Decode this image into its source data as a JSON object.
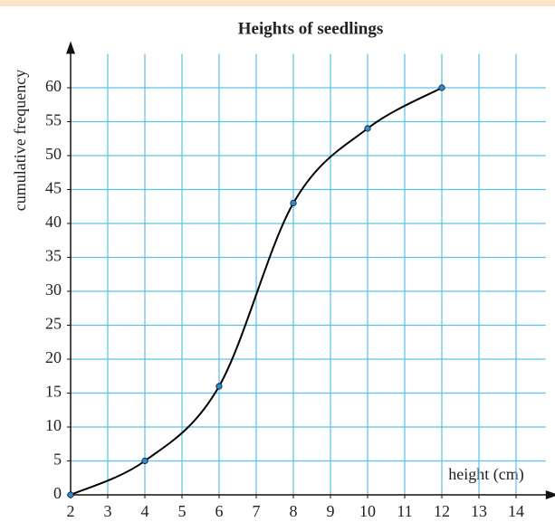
{
  "chart_data": {
    "type": "line",
    "title": "Heights of seedlings",
    "xlabel": "height (cm)",
    "ylabel": "cumulative frequency",
    "x": [
      2,
      4,
      6,
      8,
      10,
      12
    ],
    "values": [
      0,
      5,
      16,
      43,
      54,
      60
    ],
    "color": "#000000",
    "marker_color": "#2b8fc0",
    "grid_color": "#5bc0e6",
    "xlim": [
      2,
      14.8
    ],
    "ylim": [
      0,
      65
    ],
    "xticks": [
      2,
      3,
      4,
      5,
      6,
      7,
      8,
      9,
      10,
      11,
      12,
      13,
      14
    ],
    "yticks": [
      0,
      5,
      10,
      15,
      20,
      25,
      30,
      35,
      40,
      45,
      50,
      55,
      60
    ],
    "grid": true
  }
}
